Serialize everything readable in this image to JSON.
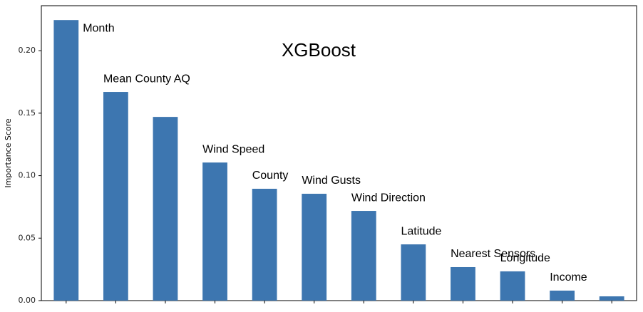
{
  "chart_data": {
    "type": "bar",
    "title": "XGBoost",
    "ylabel": "Importance Score",
    "categories": [
      "Month",
      "Mean County AQ",
      null,
      "Wind Speed",
      "County",
      "Wind Gusts",
      "Wind Direction",
      "Latitude",
      "Nearest Sensors",
      "Longitude",
      "Income",
      null
    ],
    "values": [
      0.2245,
      0.167,
      0.147,
      0.1105,
      0.0895,
      0.0855,
      0.0718,
      0.045,
      0.0268,
      0.0234,
      0.008,
      0.0034
    ],
    "color": "#3d76b0",
    "ylim": [
      0,
      0.236
    ],
    "yticks": [
      {
        "value": 0,
        "label": "0.00"
      },
      {
        "value": 0.05,
        "label": "0.05"
      },
      {
        "value": 0.1,
        "label": "0.10"
      },
      {
        "value": 0.15,
        "label": "0.15"
      },
      {
        "value": 0.2,
        "label": "0.20"
      }
    ],
    "grid": false
  }
}
